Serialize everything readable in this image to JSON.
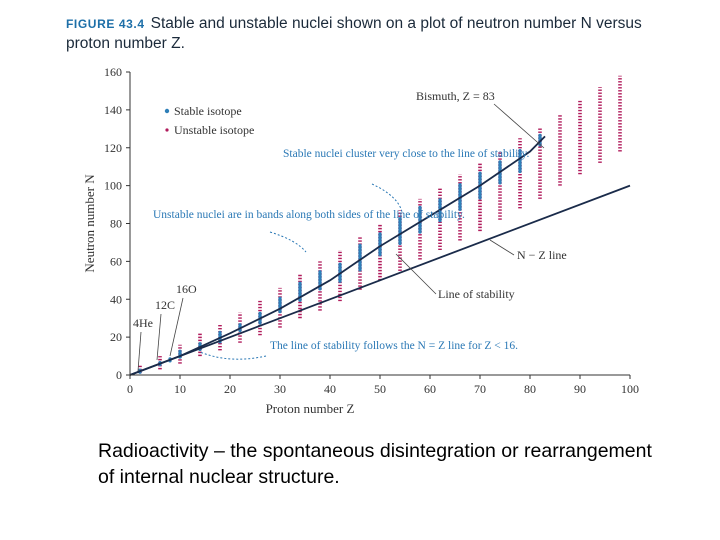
{
  "caption": {
    "label": "FIGURE 43.4",
    "text": "Stable and unstable nuclei shown on a plot of neutron number N versus proton number Z."
  },
  "colors": {
    "stable": "#2e7fb8",
    "unstable": "#b01c5c",
    "line": "#1a2b4a",
    "annotation": "#2a78b5",
    "caption_label": "#1d6fa8"
  },
  "chart_data": {
    "type": "scatter",
    "xlabel": "Proton number Z",
    "ylabel": "Neutron number N",
    "xlim": [
      0,
      100
    ],
    "ylim": [
      0,
      160
    ],
    "xticks": [
      0,
      10,
      20,
      30,
      40,
      50,
      60,
      70,
      80,
      90,
      100
    ],
    "yticks": [
      0,
      20,
      40,
      60,
      80,
      100,
      120,
      140,
      160
    ],
    "legend": [
      {
        "name": "Stable isotope",
        "color": "#2e7fb8"
      },
      {
        "name": "Unstable isotope",
        "color": "#b01c5c"
      }
    ],
    "series": [
      {
        "name": "Line of stability",
        "x": [
          0,
          10,
          20,
          30,
          40,
          50,
          60,
          70,
          80,
          83
        ],
        "y": [
          0,
          10,
          22,
          35,
          50,
          68,
          84,
          100,
          118,
          126
        ]
      },
      {
        "name": "N = Z line",
        "x": [
          0,
          100
        ],
        "y": [
          0,
          100
        ]
      },
      {
        "name": "Unstable isotope band (N range per Z)",
        "x": [
          2,
          6,
          10,
          14,
          18,
          22,
          26,
          30,
          34,
          38,
          42,
          46,
          50,
          54,
          58,
          62,
          66,
          70,
          74,
          78,
          82,
          86,
          90,
          94,
          98
        ],
        "n_min": [
          1,
          3,
          6,
          10,
          13,
          17,
          21,
          25,
          30,
          34,
          39,
          45,
          50,
          55,
          61,
          66,
          71,
          76,
          82,
          88,
          93,
          100,
          106,
          112,
          118
        ],
        "n_max": [
          5,
          10,
          16,
          22,
          27,
          33,
          40,
          46,
          53,
          60,
          66,
          73,
          80,
          87,
          93,
          99,
          106,
          112,
          118,
          125,
          131,
          138,
          145,
          152,
          158
        ]
      },
      {
        "name": "Stable isotopes (N range per Z)",
        "x": [
          2,
          6,
          8,
          10,
          14,
          18,
          22,
          26,
          30,
          34,
          38,
          42,
          46,
          50,
          54,
          58,
          62,
          66,
          70,
          74,
          78,
          82
        ],
        "n_min": [
          2,
          6,
          8,
          10,
          14,
          18,
          24,
          28,
          34,
          40,
          46,
          50,
          56,
          64,
          70,
          76,
          82,
          88,
          94,
          102,
          108,
          122
        ],
        "n_max": [
          2,
          6,
          8,
          12,
          16,
          22,
          26,
          32,
          40,
          48,
          54,
          58,
          68,
          74,
          82,
          88,
          92,
          100,
          106,
          112,
          118,
          126
        ]
      }
    ],
    "annotations": [
      {
        "text": "Bismuth, Z = 83",
        "x": 83,
        "y": 126
      },
      {
        "text": "Stable nuclei cluster very close to the line of stability.",
        "color": "blue"
      },
      {
        "text": "Unstable nuclei are in bands along both sides of the line of stability.",
        "color": "blue"
      },
      {
        "text": "N − Z line"
      },
      {
        "text": "Line of stability"
      },
      {
        "text": "The line of stability follows the N = Z line for Z < 16.",
        "color": "blue"
      },
      {
        "text": "16O",
        "x": 8,
        "y": 8
      },
      {
        "text": "12C",
        "x": 6,
        "y": 6
      },
      {
        "text": "4He",
        "x": 2,
        "y": 2
      }
    ]
  },
  "slide": {
    "text": "Radioactivity – the spontaneous disintegration or rearrangement of internal nuclear structure."
  }
}
